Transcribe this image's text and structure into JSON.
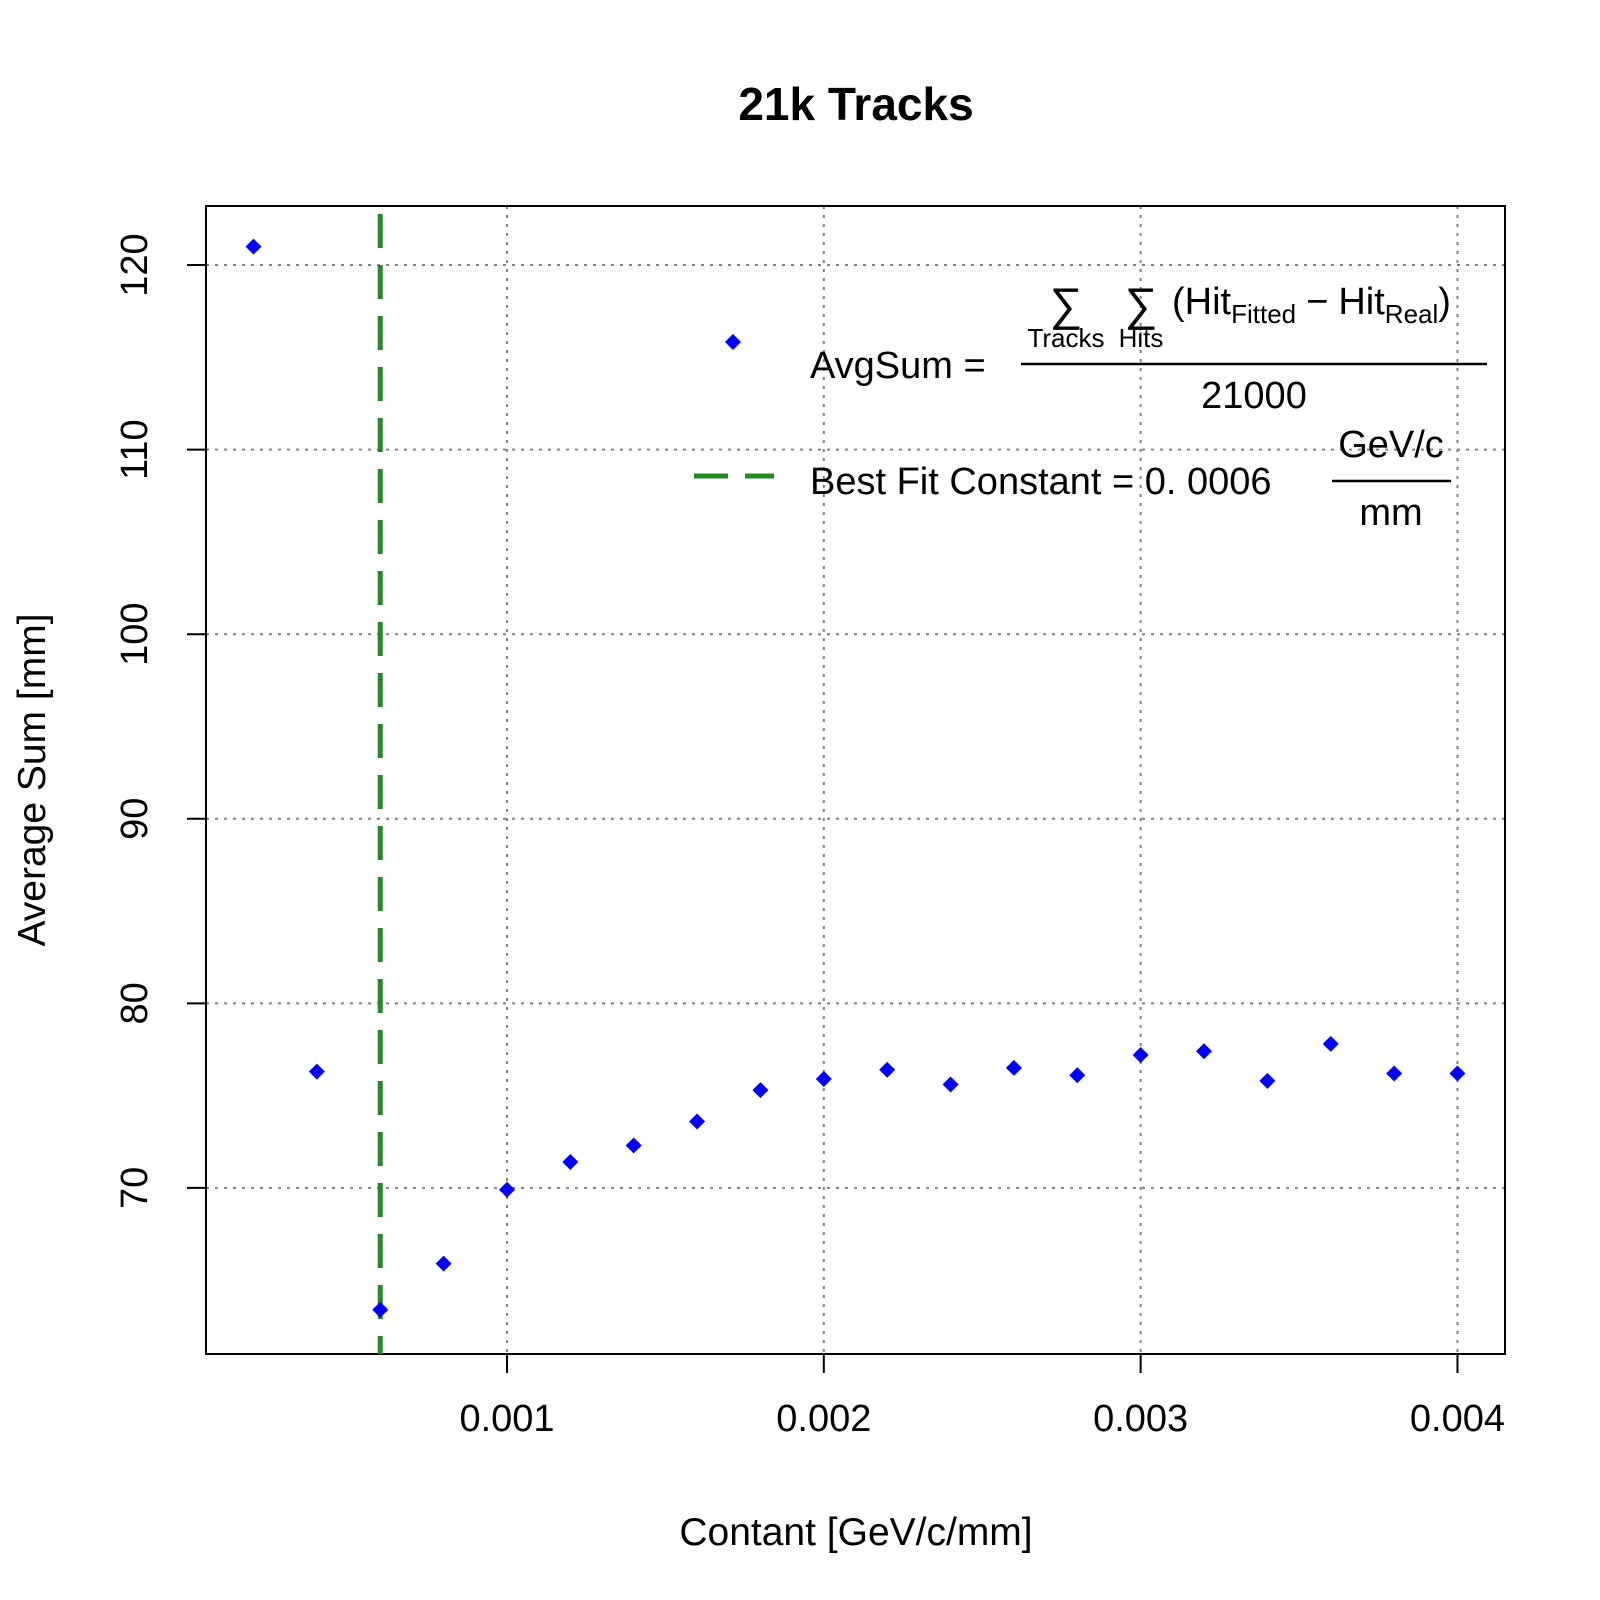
{
  "chart_data": {
    "type": "scatter",
    "title": "21k Tracks",
    "xlabel": "Contant [GeV/c/mm]",
    "ylabel": "Average Sum [mm]",
    "xlim": [
      5e-05,
      0.00415
    ],
    "ylim": [
      61,
      123.2
    ],
    "x_ticks": [
      0.001,
      0.002,
      0.003,
      0.004
    ],
    "x_tick_labels": [
      "0.001",
      "0.002",
      "0.003",
      "0.004"
    ],
    "y_ticks": [
      70,
      80,
      90,
      100,
      110,
      120
    ],
    "y_tick_labels": [
      "70",
      "80",
      "90",
      "100",
      "110",
      "120"
    ],
    "grid": true,
    "legend_position": "top-right",
    "colors": {
      "points": "#0000ff",
      "best_fit_line": "#228b22",
      "grid": "#808080"
    },
    "series": [
      {
        "x": [
          0.0002,
          0.0004,
          0.0006,
          0.0008,
          0.001,
          0.0012,
          0.0014,
          0.0016,
          0.0018,
          0.002,
          0.0022,
          0.0024,
          0.0026,
          0.0028,
          0.003,
          0.0032,
          0.0034,
          0.0036,
          0.0038,
          0.004
        ],
        "y": [
          121.0,
          76.3,
          63.4,
          65.9,
          69.9,
          71.4,
          72.3,
          73.6,
          75.3,
          75.9,
          76.4,
          75.6,
          76.5,
          76.1,
          77.2,
          77.4,
          75.8,
          77.8,
          76.2,
          76.2
        ]
      }
    ],
    "vertical_line": {
      "x": 0.0006,
      "style": "dashed"
    },
    "legend": {
      "points_entry": {
        "lhs": "AvgSum =",
        "sum_symbol": "∑",
        "sum1_sub": "Tracks",
        "sum2_sub": "Hits",
        "open_paren": "(",
        "hit1": "Hit",
        "hit1_sub": "Fitted",
        "minus": "−",
        "hit2": "Hit",
        "hit2_sub": "Real",
        "close_paren": ")",
        "denominator": "21000"
      },
      "line_entry": {
        "label": "Best Fit Constant = 0. 0006",
        "unit_numerator": "GeV/c",
        "unit_denominator": "mm"
      }
    }
  }
}
